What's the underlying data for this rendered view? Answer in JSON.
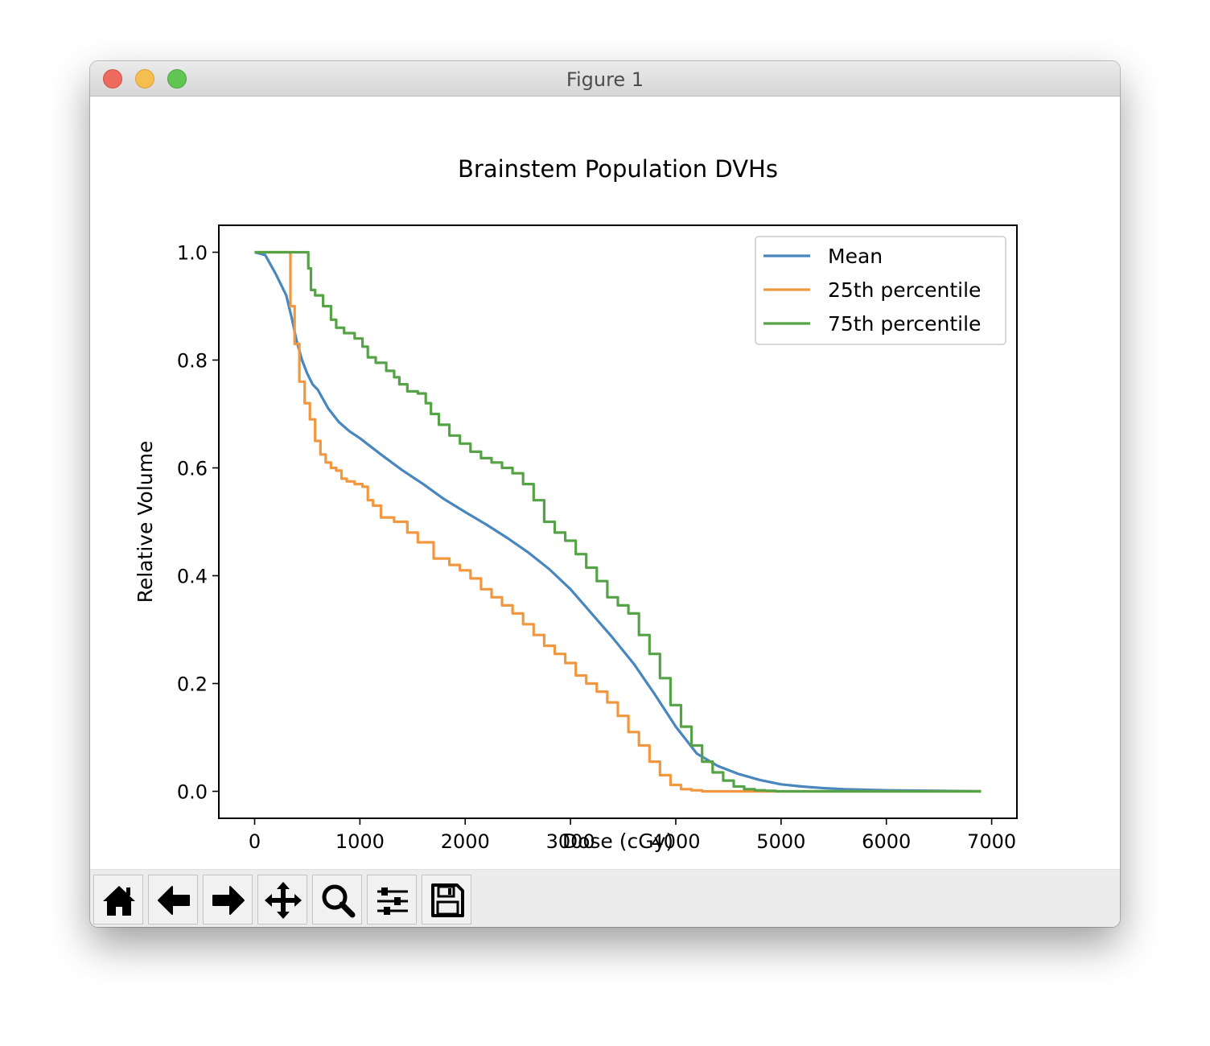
{
  "window": {
    "title": "Figure 1"
  },
  "toolbar": [
    {
      "name": "home-button",
      "icon": "home-icon"
    },
    {
      "name": "back-button",
      "icon": "arrow-left-icon"
    },
    {
      "name": "forward-button",
      "icon": "arrow-right-icon"
    },
    {
      "name": "pan-button",
      "icon": "move-icon"
    },
    {
      "name": "zoom-button",
      "icon": "magnifier-icon"
    },
    {
      "name": "configure-subplots-button",
      "icon": "sliders-icon"
    },
    {
      "name": "save-button",
      "icon": "floppy-disk-icon"
    }
  ],
  "chart_data": {
    "type": "line",
    "title": "Brainstem Population DVHs",
    "xlabel": "Dose (cGy)",
    "ylabel": "Relative Volume",
    "xlim": [
      -340,
      7240
    ],
    "ylim": [
      -0.05,
      1.05
    ],
    "xticks": [
      0,
      1000,
      2000,
      3000,
      4000,
      5000,
      6000,
      7000
    ],
    "xtick_labels": [
      "0",
      "1000",
      "2000",
      "3000",
      "4000",
      "5000",
      "6000",
      "7000"
    ],
    "yticks": [
      0.0,
      0.2,
      0.4,
      0.6,
      0.8,
      1.0
    ],
    "ytick_labels": [
      "0.0",
      "0.2",
      "0.4",
      "0.6",
      "0.8",
      "1.0"
    ],
    "grid": false,
    "legend_position": "top-right",
    "series": [
      {
        "name": "Mean",
        "color": "#4787be",
        "x": [
          0,
          100,
          200,
          300,
          350,
          400,
          450,
          500,
          550,
          600,
          700,
          800,
          900,
          1000,
          1200,
          1400,
          1600,
          1800,
          2000,
          2200,
          2400,
          2600,
          2800,
          3000,
          3200,
          3400,
          3600,
          3800,
          4000,
          4200,
          4400,
          4600,
          4800,
          5000,
          5200,
          5400,
          5600,
          5800,
          6000,
          6500,
          6900
        ],
        "y": [
          1.0,
          0.995,
          0.96,
          0.92,
          0.88,
          0.835,
          0.8,
          0.775,
          0.755,
          0.745,
          0.71,
          0.685,
          0.668,
          0.655,
          0.625,
          0.596,
          0.57,
          0.542,
          0.518,
          0.495,
          0.47,
          0.443,
          0.412,
          0.375,
          0.33,
          0.285,
          0.237,
          0.18,
          0.12,
          0.07,
          0.047,
          0.032,
          0.021,
          0.013,
          0.009,
          0.006,
          0.004,
          0.003,
          0.002,
          0.001,
          0.0
        ],
        "stepped": false
      },
      {
        "name": "25th percentile",
        "color": "#f0973f",
        "x": [
          0,
          320,
          360,
          400,
          450,
          500,
          550,
          600,
          650,
          700,
          750,
          800,
          850,
          900,
          1000,
          1050,
          1100,
          1150,
          1250,
          1400,
          1500,
          1600,
          1800,
          1900,
          2000,
          2100,
          2200,
          2300,
          2400,
          2500,
          2600,
          2700,
          2800,
          2900,
          3000,
          3100,
          3200,
          3300,
          3400,
          3500,
          3600,
          3700,
          3800,
          3900,
          4000,
          4100,
          4200,
          4300,
          4600,
          4900,
          5000,
          5500,
          6000,
          6900
        ],
        "y": [
          1.0,
          1.0,
          0.9,
          0.83,
          0.76,
          0.72,
          0.69,
          0.65,
          0.625,
          0.61,
          0.6,
          0.595,
          0.58,
          0.575,
          0.57,
          0.565,
          0.54,
          0.53,
          0.508,
          0.5,
          0.48,
          0.462,
          0.432,
          0.42,
          0.41,
          0.395,
          0.375,
          0.36,
          0.345,
          0.33,
          0.31,
          0.29,
          0.27,
          0.255,
          0.238,
          0.215,
          0.2,
          0.185,
          0.165,
          0.14,
          0.11,
          0.085,
          0.055,
          0.03,
          0.012,
          0.004,
          0.002,
          0.0,
          0.0,
          0.0,
          0.0,
          0.0,
          0.0,
          0.0
        ],
        "stepped": true
      },
      {
        "name": "75th percentile",
        "color": "#55a346",
        "x": [
          0,
          500,
          520,
          550,
          600,
          700,
          750,
          800,
          900,
          1000,
          1050,
          1100,
          1200,
          1300,
          1350,
          1400,
          1500,
          1600,
          1650,
          1700,
          1800,
          1900,
          2000,
          2100,
          2200,
          2300,
          2400,
          2500,
          2600,
          2700,
          2800,
          2900,
          3000,
          3100,
          3200,
          3300,
          3400,
          3500,
          3600,
          3700,
          3800,
          3900,
          4000,
          4100,
          4200,
          4300,
          4400,
          4500,
          4600,
          4700,
          4800,
          4900,
          5000,
          5500,
          6000,
          6900
        ],
        "y": [
          1.0,
          1.0,
          0.97,
          0.93,
          0.92,
          0.9,
          0.875,
          0.86,
          0.85,
          0.84,
          0.825,
          0.805,
          0.795,
          0.78,
          0.768,
          0.755,
          0.742,
          0.738,
          0.72,
          0.7,
          0.68,
          0.66,
          0.645,
          0.63,
          0.618,
          0.61,
          0.6,
          0.59,
          0.57,
          0.54,
          0.5,
          0.48,
          0.465,
          0.44,
          0.415,
          0.39,
          0.36,
          0.345,
          0.33,
          0.29,
          0.255,
          0.21,
          0.16,
          0.12,
          0.085,
          0.055,
          0.035,
          0.02,
          0.009,
          0.004,
          0.002,
          0.001,
          0.0,
          0.0,
          0.0,
          0.0
        ],
        "stepped": true
      }
    ]
  }
}
